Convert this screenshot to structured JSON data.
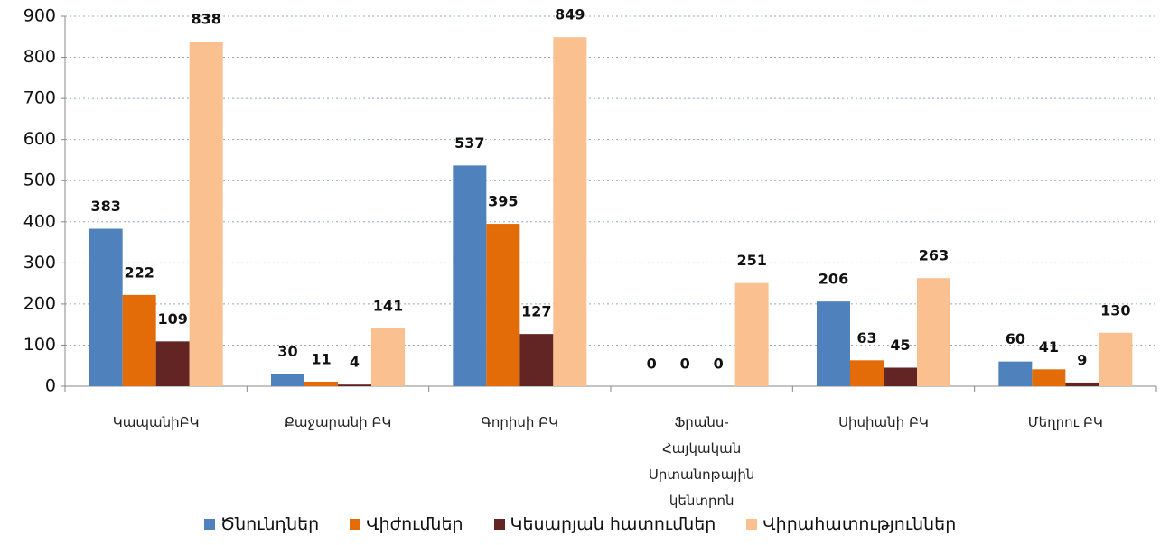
{
  "chart_data": {
    "type": "bar",
    "categories": [
      "ԿապանիԲԿ",
      "Քաջարանի ԲԿ",
      "Գորիսի ԲԿ",
      "Ֆրանս-Հայկական Սրտանոթային կենտրոն",
      "Սիսիանի ԲԿ",
      "Մեղրու ԲԿ"
    ],
    "series": [
      {
        "name": "Ծնունդներ",
        "color": "#4f81bd",
        "values": [
          383,
          30,
          537,
          0,
          206,
          60
        ]
      },
      {
        "name": "Վիժումներ",
        "color": "#e36c09",
        "values": [
          222,
          11,
          395,
          0,
          63,
          41
        ]
      },
      {
        "name": "Կեսարյան հատումներ",
        "color": "#632523",
        "values": [
          109,
          4,
          127,
          0,
          45,
          9
        ]
      },
      {
        "name": "Վիրահատություններ",
        "color": "#fac090",
        "values": [
          838,
          141,
          849,
          251,
          263,
          130
        ]
      }
    ],
    "ylim": [
      0,
      900
    ],
    "yticks": [
      0,
      100,
      200,
      300,
      400,
      500,
      600,
      700,
      800,
      900
    ],
    "grid": true,
    "legend": "bottom"
  }
}
